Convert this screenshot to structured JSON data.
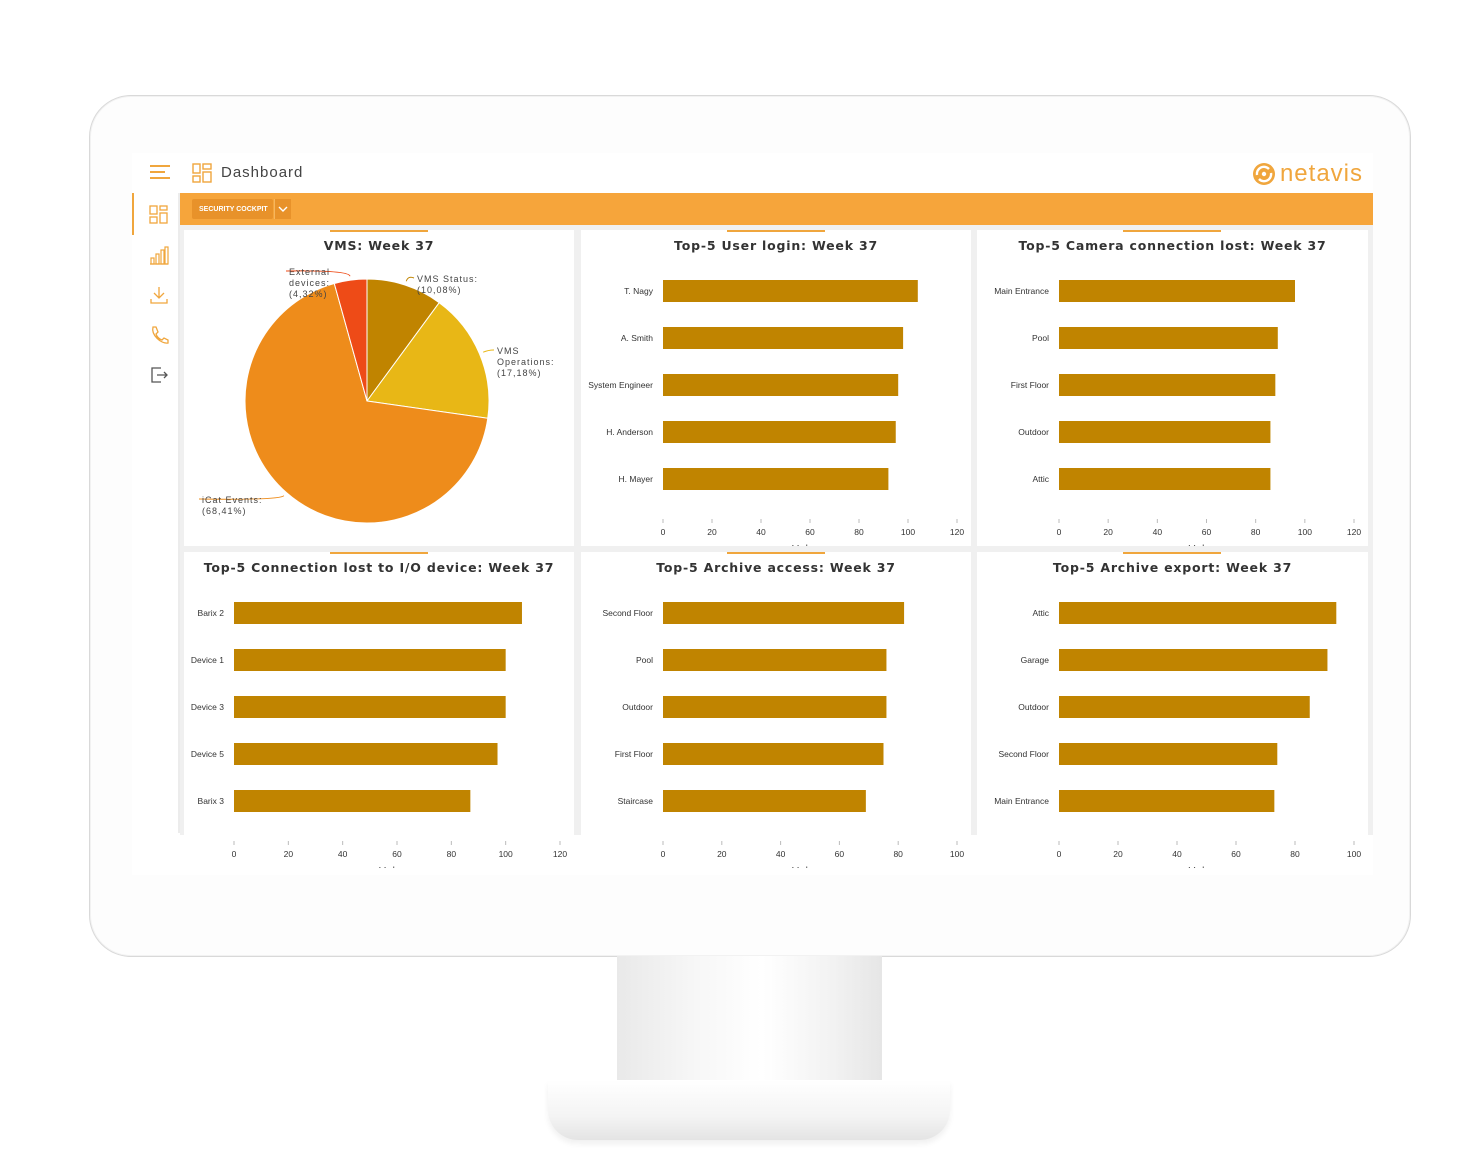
{
  "app": {
    "title": "Dashboard",
    "logo_text": "netavis",
    "cockpit_label": "SECURITY COCKPIT",
    "accent_color": "#f6a53b",
    "bar_color": "#c08400"
  },
  "sidebar": {
    "items": [
      {
        "name": "dashboard-icon"
      },
      {
        "name": "statistics-icon"
      },
      {
        "name": "download-icon"
      },
      {
        "name": "phone-icon"
      },
      {
        "name": "logout-icon"
      }
    ]
  },
  "panels": [
    {
      "title": "VMS: Week 37"
    },
    {
      "title": "Top-5 User login: Week 37"
    },
    {
      "title": "Top-5 Camera connection lost: Week 37"
    },
    {
      "title": "Top-5 Connection lost to I/O device: Week 37"
    },
    {
      "title": "Top-5 Archive access: Week 37"
    },
    {
      "title": "Top-5 Archive export: Week 37"
    }
  ],
  "chart_data": [
    {
      "type": "pie",
      "title": "VMS: Week 37",
      "slices": [
        {
          "name": "VMS Status:",
          "label": "(10,08%)",
          "value": 10.08,
          "color": "#c08400"
        },
        {
          "name": "VMS Operations:",
          "label": "(17,18%)",
          "value": 17.18,
          "color": "#e8b716"
        },
        {
          "name": "iCat Events:",
          "label": "(68,41%)",
          "value": 68.41,
          "color": "#ee8c1b"
        },
        {
          "name": "External devices:",
          "label": "(4,32%)",
          "value": 4.32,
          "color": "#ee4b17"
        }
      ]
    },
    {
      "type": "bar",
      "title": "Top-5 User login: Week 37",
      "categories": [
        "T. Nagy",
        "A. Smith",
        "System Engineer",
        "H. Anderson",
        "H. Mayer"
      ],
      "values": [
        104,
        98,
        96,
        95,
        92
      ],
      "xlabel": "Values",
      "xlim": [
        0,
        120
      ],
      "ticks": [
        "0",
        "20",
        "40",
        "60",
        "80",
        "100",
        "120"
      ]
    },
    {
      "type": "bar",
      "title": "Top-5 Camera connection lost: Week 37",
      "categories": [
        "Main Entrance",
        "Pool",
        "First Floor",
        "Outdoor",
        "Attic"
      ],
      "values": [
        96,
        89,
        88,
        86,
        86
      ],
      "xlabel": "Values",
      "xlim": [
        0,
        120
      ],
      "ticks": [
        "0",
        "20",
        "40",
        "60",
        "80",
        "100",
        "120"
      ]
    },
    {
      "type": "bar",
      "title": "Top-5 Connection lost to I/O device: Week 37",
      "categories": [
        "Barix 2",
        "Device 1",
        "Device 3",
        "Device 5",
        "Barix 3"
      ],
      "values": [
        106,
        100,
        100,
        97,
        87
      ],
      "xlabel": "Values",
      "xlim": [
        0,
        120
      ],
      "ticks": [
        "0",
        "20",
        "40",
        "60",
        "80",
        "100",
        "120"
      ]
    },
    {
      "type": "bar",
      "title": "Top-5 Archive access: Week 37",
      "categories": [
        "Second Floor",
        "Pool",
        "Outdoor",
        "First Floor",
        "Staircase"
      ],
      "values": [
        82,
        76,
        76,
        75,
        69
      ],
      "xlabel": "Values",
      "xlim": [
        0,
        100
      ],
      "ticks": [
        "0",
        "20",
        "40",
        "60",
        "80",
        "100"
      ]
    },
    {
      "type": "bar",
      "title": "Top-5 Archive export: Week 37",
      "categories": [
        "Attic",
        "Garage",
        "Outdoor",
        "Second Floor",
        "Main Entrance"
      ],
      "values": [
        94,
        91,
        85,
        74,
        73
      ],
      "xlabel": "Values",
      "xlim": [
        0,
        100
      ],
      "ticks": [
        "0",
        "20",
        "40",
        "60",
        "80",
        "100"
      ]
    }
  ]
}
